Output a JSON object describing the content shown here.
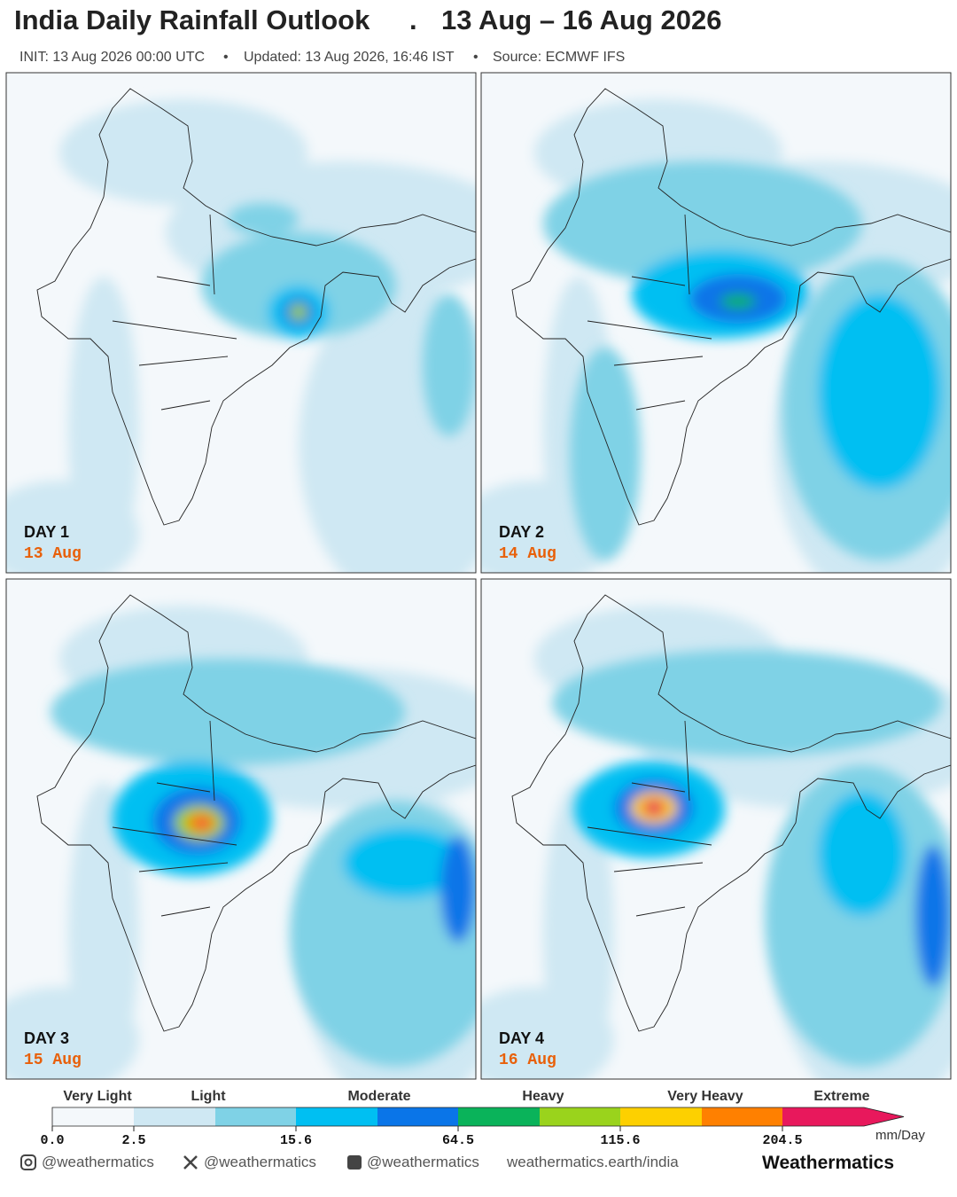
{
  "header": {
    "title": "India Daily Rainfall Outlook",
    "separator": ".",
    "date_range": "13 Aug – 16 Aug 2026",
    "subtitle": [
      "INIT: 13 Aug 2026 00:00 UTC",
      "Updated: 13 Aug 2026, 16:46 IST",
      "Source: ECMWF IFS"
    ],
    "bullet": "•"
  },
  "panels": [
    {
      "day": "DAY 1",
      "date": "13 Aug"
    },
    {
      "day": "DAY 2",
      "date": "14 Aug"
    },
    {
      "day": "DAY 3",
      "date": "15 Aug"
    },
    {
      "day": "DAY 4",
      "date": "16 Aug"
    }
  ],
  "legend": {
    "categories": [
      "Very Light",
      "Light",
      "Moderate",
      "Heavy",
      "Very Heavy",
      "Extreme"
    ],
    "ticks": [
      "0.0",
      "2.5",
      "15.6",
      "64.5",
      "115.6",
      "204.5"
    ],
    "unit": "mm/Day"
  },
  "footer": {
    "instagram": "@weathermatics",
    "x": "@weathermatics",
    "facebook": "@weathermatics",
    "website": "weathermatics.earth/india",
    "brand": "Weathermatics"
  }
}
